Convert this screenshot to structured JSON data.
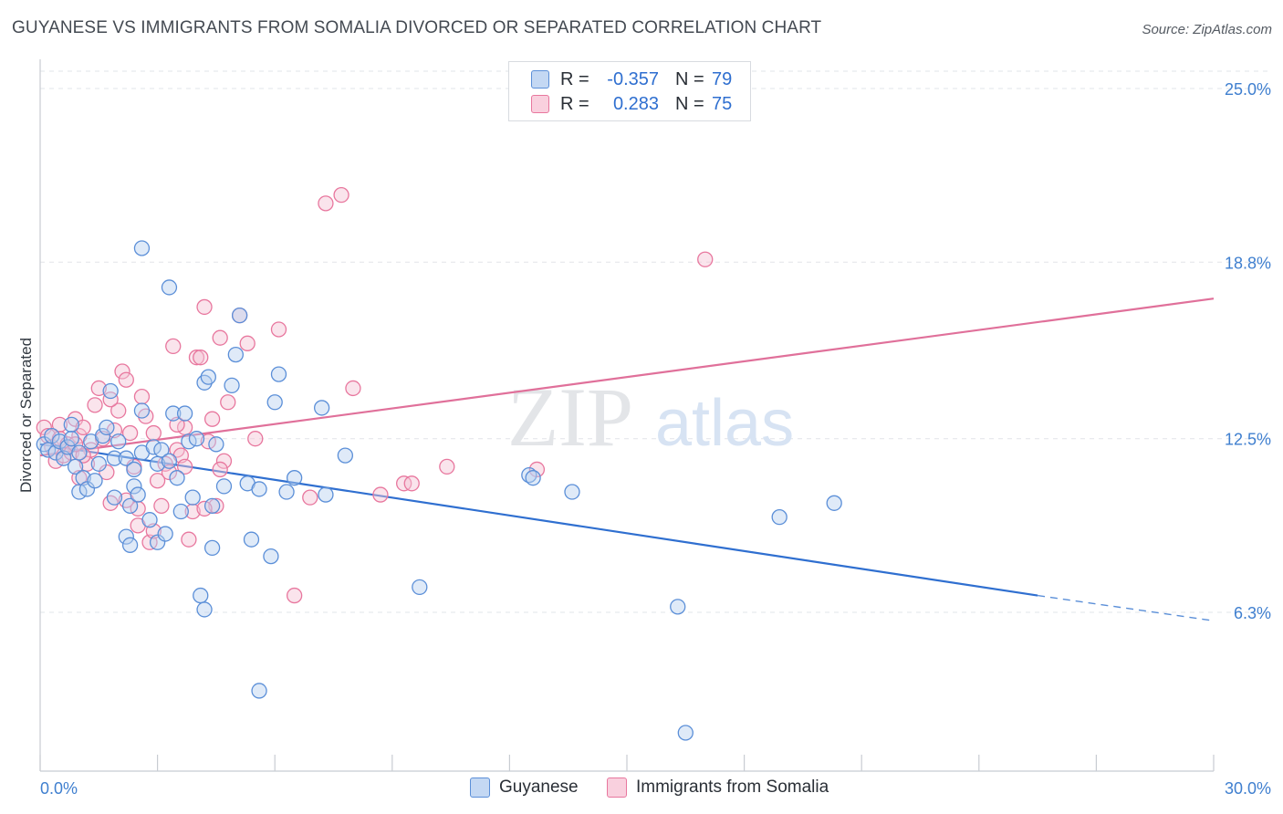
{
  "title": "GUYANESE VS IMMIGRANTS FROM SOMALIA DIVORCED OR SEPARATED CORRELATION CHART",
  "source": "Source: ZipAtlas.com",
  "watermark": {
    "zip": "ZIP",
    "atlas": "atlas"
  },
  "legend": {
    "rows": [
      {
        "r_label": "R =",
        "r_value": "-0.357",
        "n_label": "N =",
        "n_value": "79"
      },
      {
        "r_label": "R =",
        "r_value": "0.283",
        "n_label": "N =",
        "n_value": "75"
      }
    ]
  },
  "chart_data": {
    "type": "scatter",
    "title": "GUYANESE VS IMMIGRANTS FROM SOMALIA DIVORCED OR SEPARATED CORRELATION CHART",
    "xlabel": "",
    "ylabel": "Divorced or Separated",
    "xlim": [
      0,
      30
    ],
    "ylim": [
      0,
      26
    ],
    "x_tick_labels": [
      "0.0%",
      "30.0%"
    ],
    "y_ticks": [
      6.3,
      12.5,
      18.8,
      25.0
    ],
    "y_tick_labels": [
      "6.3%",
      "12.5%",
      "18.8%",
      "25.0%"
    ],
    "grid": true,
    "legend_position": "top-center",
    "colors": {
      "Guyanese": "#5b8fd8",
      "Immigrants from Somalia": "#e890b0"
    },
    "series": [
      {
        "name": "Guyanese",
        "color": "#5b8fd8",
        "fill": "#b9d0f0",
        "r": -0.357,
        "n": 79,
        "trend": {
          "x0": 0,
          "y0": 12.3,
          "x1": 25.5,
          "y1": 6.9,
          "dash_to_x": 30,
          "dash_to_y": 6.0
        },
        "points": [
          [
            0.1,
            12.3
          ],
          [
            0.2,
            12.1
          ],
          [
            0.3,
            12.6
          ],
          [
            0.4,
            12.0
          ],
          [
            0.5,
            12.4
          ],
          [
            0.6,
            11.8
          ],
          [
            0.7,
            12.2
          ],
          [
            0.8,
            13.0
          ],
          [
            0.8,
            12.5
          ],
          [
            0.9,
            11.5
          ],
          [
            1.0,
            12.0
          ],
          [
            1.0,
            10.6
          ],
          [
            1.1,
            11.1
          ],
          [
            1.2,
            10.7
          ],
          [
            1.3,
            12.4
          ],
          [
            1.4,
            11.0
          ],
          [
            1.5,
            11.6
          ],
          [
            1.6,
            12.6
          ],
          [
            1.7,
            12.9
          ],
          [
            1.8,
            14.2
          ],
          [
            1.9,
            11.8
          ],
          [
            1.9,
            10.4
          ],
          [
            2.0,
            12.4
          ],
          [
            2.2,
            11.8
          ],
          [
            2.2,
            9.0
          ],
          [
            2.3,
            10.1
          ],
          [
            2.3,
            8.7
          ],
          [
            2.4,
            10.8
          ],
          [
            2.4,
            11.4
          ],
          [
            2.5,
            10.5
          ],
          [
            2.6,
            12.0
          ],
          [
            2.6,
            13.5
          ],
          [
            2.6,
            19.3
          ],
          [
            2.8,
            9.6
          ],
          [
            2.9,
            12.2
          ],
          [
            3.0,
            11.6
          ],
          [
            3.0,
            8.8
          ],
          [
            3.1,
            12.1
          ],
          [
            3.2,
            9.1
          ],
          [
            3.3,
            11.7
          ],
          [
            3.3,
            17.9
          ],
          [
            3.4,
            13.4
          ],
          [
            3.5,
            11.1
          ],
          [
            3.6,
            9.9
          ],
          [
            3.7,
            13.4
          ],
          [
            3.8,
            12.4
          ],
          [
            3.9,
            10.4
          ],
          [
            4.0,
            12.5
          ],
          [
            4.1,
            6.9
          ],
          [
            4.2,
            14.5
          ],
          [
            4.2,
            6.4
          ],
          [
            4.3,
            14.7
          ],
          [
            4.4,
            10.1
          ],
          [
            4.4,
            8.6
          ],
          [
            4.5,
            12.3
          ],
          [
            4.7,
            10.8
          ],
          [
            4.9,
            14.4
          ],
          [
            5.0,
            15.5
          ],
          [
            5.1,
            16.9
          ],
          [
            5.3,
            10.9
          ],
          [
            5.4,
            8.9
          ],
          [
            5.6,
            10.7
          ],
          [
            5.6,
            3.5
          ],
          [
            5.9,
            8.3
          ],
          [
            6.0,
            13.8
          ],
          [
            6.1,
            14.8
          ],
          [
            6.3,
            10.6
          ],
          [
            6.5,
            11.1
          ],
          [
            7.2,
            13.6
          ],
          [
            7.3,
            10.5
          ],
          [
            7.8,
            11.9
          ],
          [
            9.7,
            7.2
          ],
          [
            12.5,
            11.2
          ],
          [
            12.6,
            11.1
          ],
          [
            13.6,
            10.6
          ],
          [
            16.3,
            6.5
          ],
          [
            16.5,
            2.0
          ],
          [
            18.9,
            9.7
          ],
          [
            20.3,
            10.2
          ]
        ]
      },
      {
        "name": "Immigrants from Somalia",
        "color": "#e8779e",
        "fill": "#f5c4d4",
        "r": 0.283,
        "n": 75,
        "trend": {
          "x0": 0,
          "y0": 11.9,
          "x1": 30,
          "y1": 17.5
        },
        "points": [
          [
            0.1,
            12.9
          ],
          [
            0.2,
            12.6
          ],
          [
            0.3,
            12.2
          ],
          [
            0.4,
            11.7
          ],
          [
            0.5,
            12.5
          ],
          [
            0.6,
            11.9
          ],
          [
            0.7,
            12.3
          ],
          [
            0.8,
            12.0
          ],
          [
            0.9,
            13.2
          ],
          [
            1.0,
            12.6
          ],
          [
            1.1,
            12.9
          ],
          [
            1.2,
            11.6
          ],
          [
            1.3,
            12.1
          ],
          [
            1.4,
            13.7
          ],
          [
            1.5,
            14.3
          ],
          [
            1.6,
            12.5
          ],
          [
            1.7,
            11.3
          ],
          [
            1.8,
            10.2
          ],
          [
            1.9,
            12.8
          ],
          [
            2.0,
            13.5
          ],
          [
            2.1,
            14.9
          ],
          [
            2.2,
            14.6
          ],
          [
            2.3,
            12.7
          ],
          [
            2.4,
            11.5
          ],
          [
            2.5,
            9.4
          ],
          [
            2.5,
            10.0
          ],
          [
            2.6,
            14.0
          ],
          [
            2.7,
            13.3
          ],
          [
            2.8,
            8.8
          ],
          [
            2.9,
            12.7
          ],
          [
            3.0,
            11.0
          ],
          [
            3.1,
            10.1
          ],
          [
            3.2,
            11.6
          ],
          [
            3.3,
            11.3
          ],
          [
            3.4,
            15.8
          ],
          [
            3.5,
            12.1
          ],
          [
            3.6,
            11.9
          ],
          [
            3.7,
            11.5
          ],
          [
            3.8,
            8.9
          ],
          [
            3.9,
            9.9
          ],
          [
            4.0,
            15.4
          ],
          [
            4.1,
            15.4
          ],
          [
            4.2,
            17.2
          ],
          [
            4.3,
            12.4
          ],
          [
            4.4,
            13.2
          ],
          [
            4.5,
            10.1
          ],
          [
            4.6,
            16.1
          ],
          [
            4.7,
            11.7
          ],
          [
            4.8,
            13.8
          ],
          [
            5.1,
            16.9
          ],
          [
            5.3,
            15.9
          ],
          [
            5.5,
            12.5
          ],
          [
            6.1,
            16.4
          ],
          [
            6.5,
            6.9
          ],
          [
            6.9,
            10.4
          ],
          [
            7.3,
            20.9
          ],
          [
            7.7,
            21.2
          ],
          [
            8.0,
            14.3
          ],
          [
            8.7,
            10.5
          ],
          [
            9.3,
            10.9
          ],
          [
            9.5,
            10.9
          ],
          [
            10.4,
            11.5
          ],
          [
            12.7,
            11.4
          ],
          [
            17.0,
            18.9
          ],
          [
            1.0,
            11.1
          ],
          [
            1.1,
            11.9
          ],
          [
            1.8,
            13.9
          ],
          [
            2.2,
            10.3
          ],
          [
            0.5,
            13.0
          ],
          [
            3.7,
            12.9
          ],
          [
            4.2,
            10.0
          ],
          [
            0.9,
            12.3
          ],
          [
            2.9,
            9.2
          ],
          [
            3.5,
            13.0
          ],
          [
            4.6,
            11.4
          ]
        ]
      }
    ]
  },
  "bottom_legend": [
    {
      "label": "Guyanese",
      "color": "#5b8fd8",
      "fill": "#b9d0f0"
    },
    {
      "label": "Immigrants from Somalia",
      "color": "#e8779e",
      "fill": "#f5c4d4"
    }
  ]
}
